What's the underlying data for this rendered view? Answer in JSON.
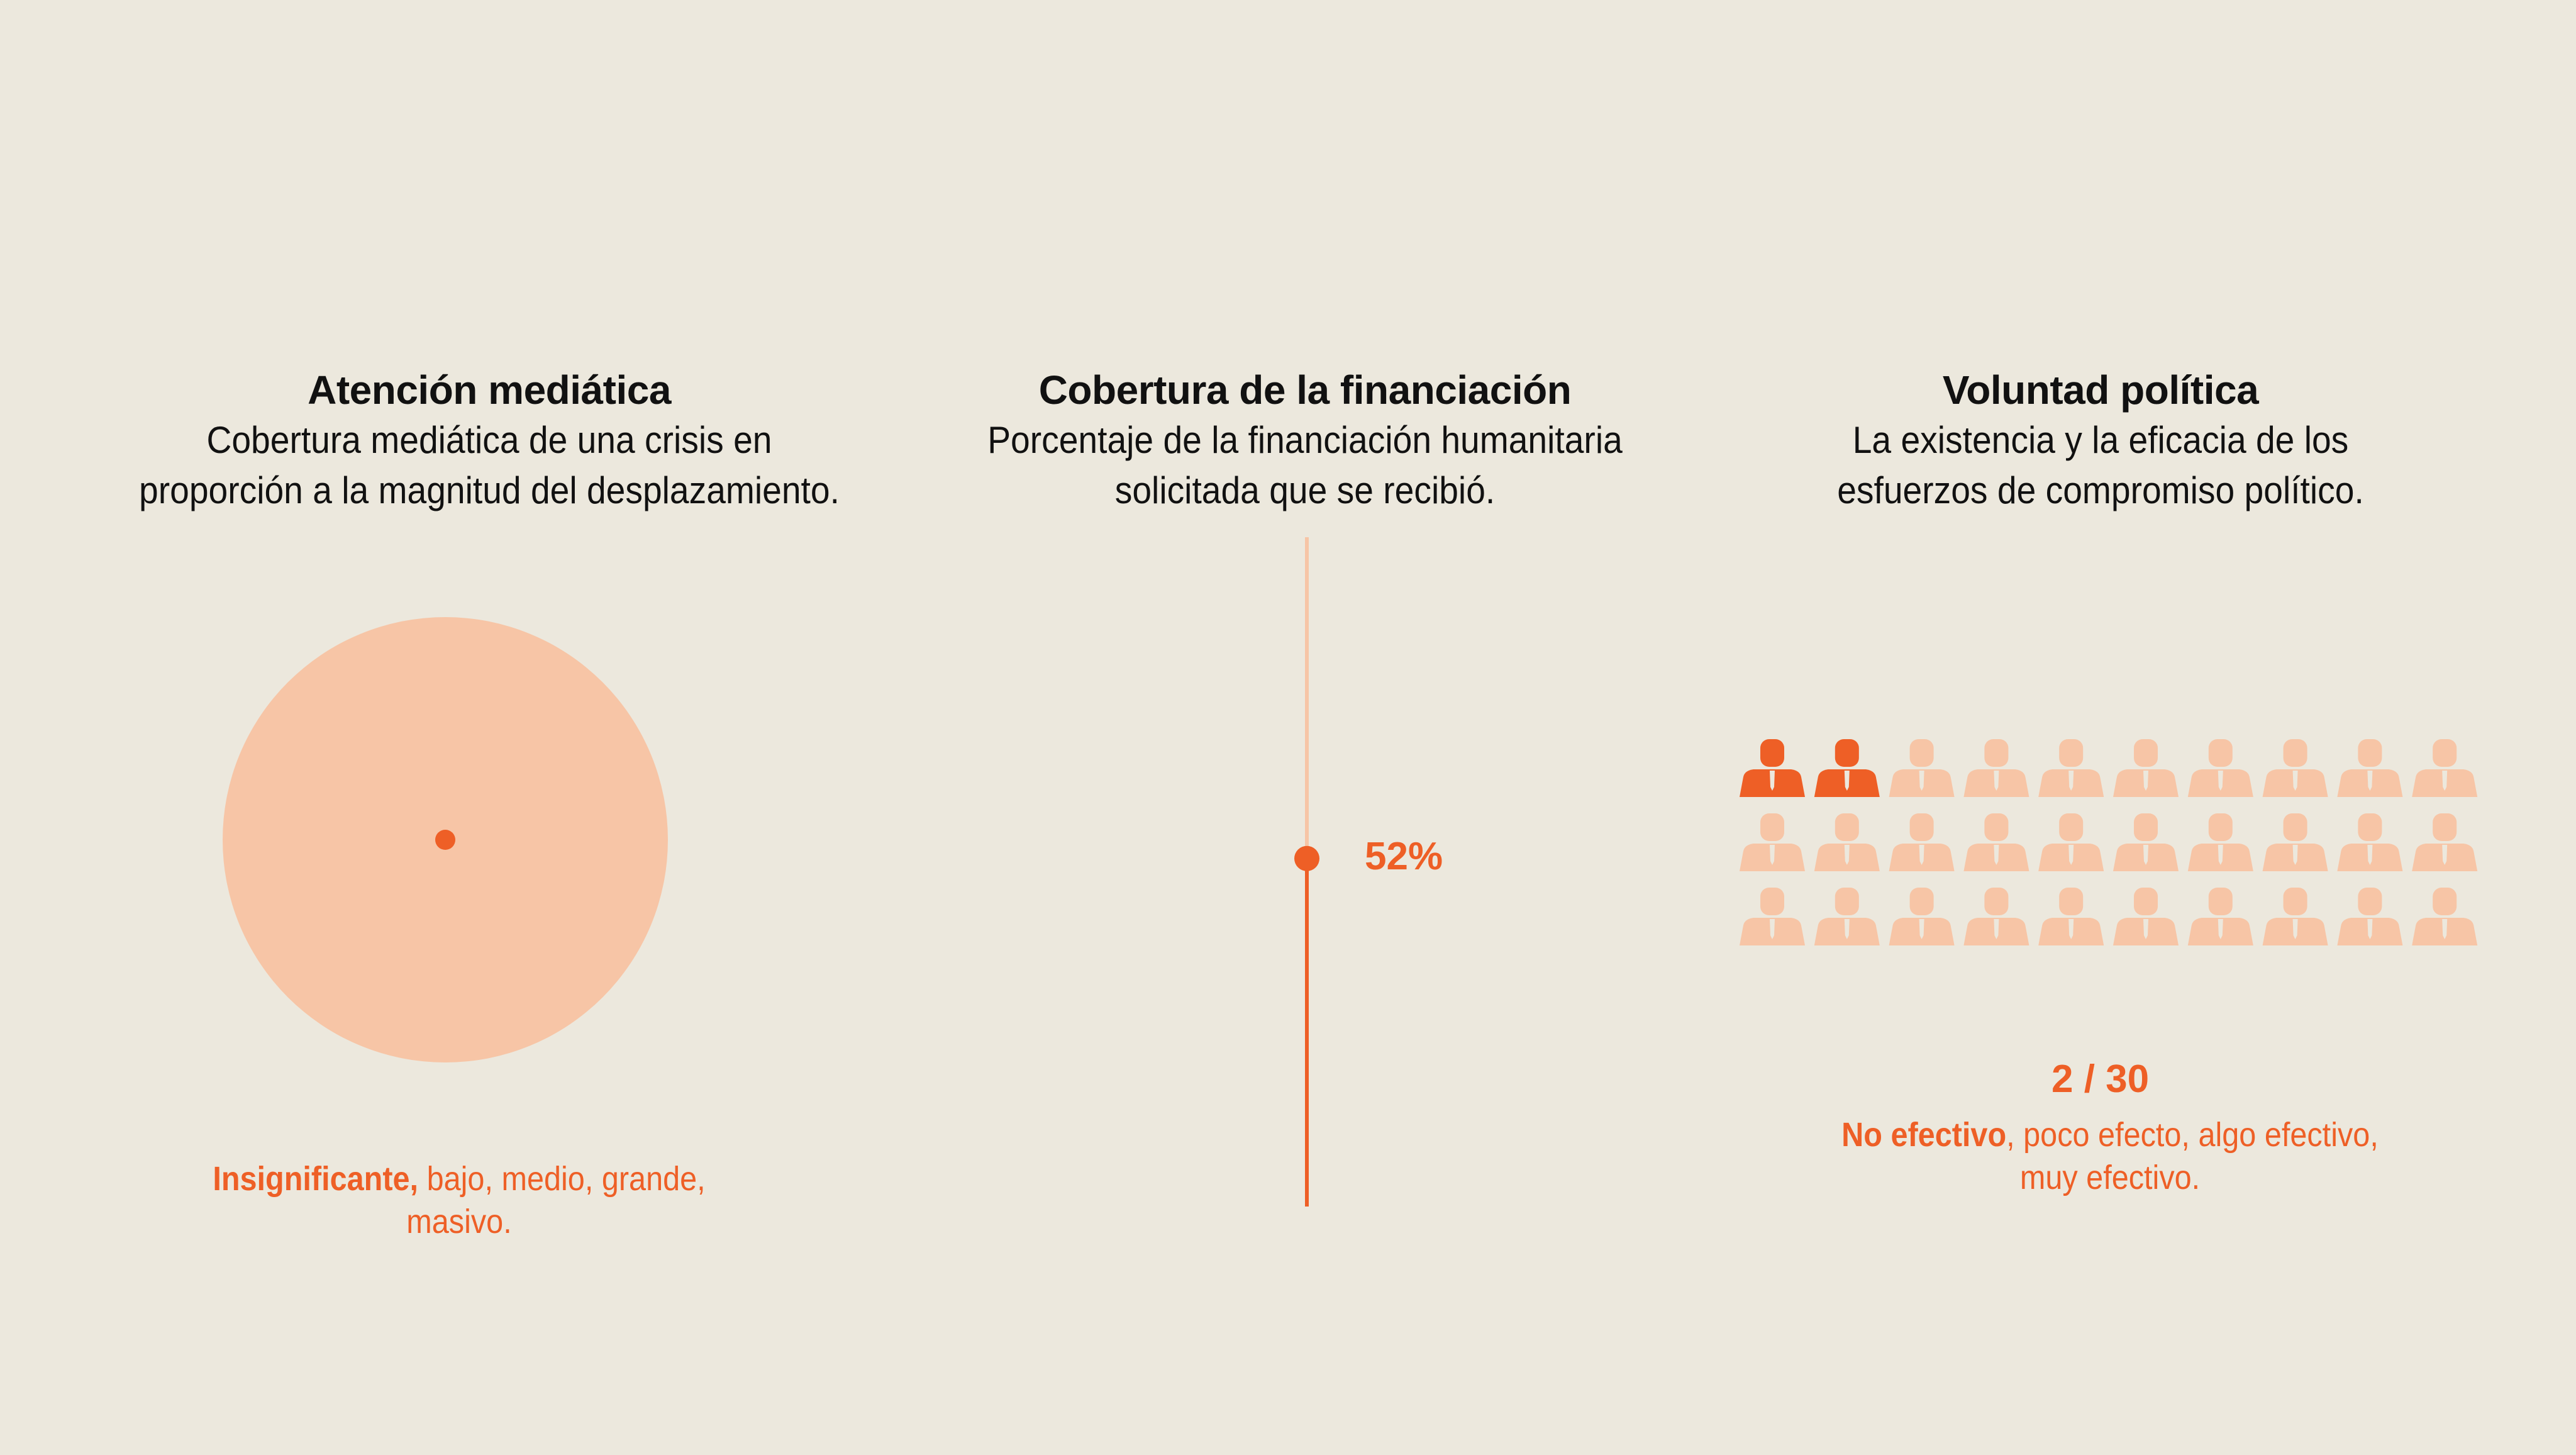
{
  "colors": {
    "background": "#ece8dd",
    "accent": "#ee5f26",
    "accent_light": "#f7c5a6",
    "text": "#111111"
  },
  "media": {
    "title": "Atención mediática",
    "subtitle_lines": [
      "Cobertura mediática de una crisis en",
      "proporción a la magnitud del desplazamiento."
    ],
    "level_selected": "Insignificante,",
    "levels_rest_line1": " bajo, medio, grande,",
    "levels_rest_line2": "masivo."
  },
  "funding": {
    "title": "Cobertura de la financiación",
    "subtitle_lines": [
      "Porcentaje de la financiación humanitaria",
      "solicitada que se recibió."
    ],
    "value_label": "52%"
  },
  "political": {
    "title": "Voluntad política",
    "subtitle_lines": [
      "La existencia y la eficacia de los",
      "esfuerzos de compromiso político."
    ],
    "score_label": "2 / 30",
    "level_selected": "No efectivo",
    "levels_rest_line1": ", poco efecto, algo efectivo,",
    "levels_rest_line2": "muy efectivo.",
    "icon_name": "person-icon"
  },
  "chart_data": [
    {
      "type": "bubble",
      "title": "Atención mediática",
      "scale": [
        "Insignificante",
        "bajo",
        "medio",
        "grande",
        "masivo"
      ],
      "selected": "Insignificante",
      "value_fraction": 0.0
    },
    {
      "type": "progress",
      "title": "Cobertura de la financiación",
      "value_percent": 52,
      "ylim": [
        0,
        100
      ]
    },
    {
      "type": "pictogram",
      "title": "Voluntad política",
      "value": 2,
      "total": 30,
      "rows": 3,
      "columns": 10,
      "scale": [
        "No efectivo",
        "poco efecto",
        "algo efectivo",
        "muy efectivo"
      ],
      "selected": "No efectivo"
    }
  ]
}
